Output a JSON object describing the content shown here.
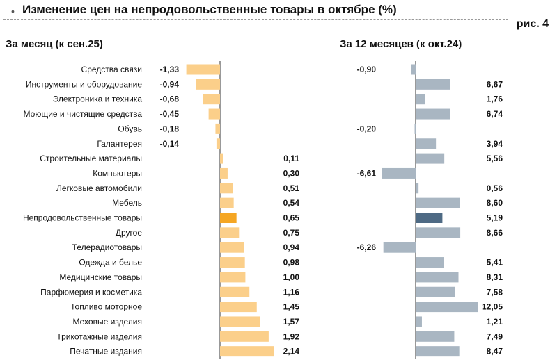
{
  "header": {
    "title": "Изменение цен на непродовольственные товары в октябре (%)",
    "figure_label": "рис. 4"
  },
  "colors": {
    "month_bar": "#fbcf8a",
    "month_highlight": "#f5a623",
    "year_bar": "#a9b6c2",
    "year_highlight": "#4e6a84",
    "axis": "#333333"
  },
  "chart_data": [
    {
      "type": "bar",
      "orientation": "horizontal",
      "title": "За месяц (к сен.25)",
      "highlight": "Непродовольственные товары",
      "categories": [
        "Средства связи",
        "Инструменты и оборудование",
        "Электроника и техника",
        "Моющие и чистящие средства",
        "Обувь",
        "Галантерея",
        "Строительные материалы",
        "Компьютеры",
        "Легковые автомобили",
        "Мебель",
        "Непродовольственные товары",
        "Другое",
        "Телерадиотовары",
        "Одежда и белье",
        "Медицинские товары",
        "Парфюмерия и косметика",
        "Топливо моторное",
        "Меховые изделия",
        "Трикотажные изделия",
        "Печатные издания"
      ],
      "values": [
        -1.33,
        -0.94,
        -0.68,
        -0.45,
        -0.18,
        -0.14,
        0.11,
        0.3,
        0.51,
        0.54,
        0.65,
        0.75,
        0.94,
        0.98,
        1.0,
        1.16,
        1.45,
        1.57,
        1.92,
        2.14
      ],
      "labels": [
        "-1,33",
        "-0,94",
        "-0,68",
        "-0,45",
        "-0,18",
        "-0,14",
        "0,11",
        "0,30",
        "0,51",
        "0,54",
        "0,65",
        "0,75",
        "0,94",
        "0,98",
        "1,00",
        "1,16",
        "1,45",
        "1,57",
        "1,92",
        "2,14"
      ]
    },
    {
      "type": "bar",
      "orientation": "horizontal",
      "title": "За 12 месяцев (к окт.24)",
      "highlight": "Непродовольственные товары",
      "categories": [
        "Средства связи",
        "Инструменты и оборудование",
        "Электроника и техника",
        "Моющие и чистящие средства",
        "Обувь",
        "Галантерея",
        "Строительные материалы",
        "Компьютеры",
        "Легковые автомобили",
        "Мебель",
        "Непродовольственные товары",
        "Другое",
        "Телерадиотовары",
        "Одежда и белье",
        "Медицинские товары",
        "Парфюмерия и косметика",
        "Топливо моторное",
        "Меховые изделия",
        "Трикотажные изделия",
        "Печатные издания"
      ],
      "values": [
        -0.9,
        6.67,
        1.76,
        6.74,
        -0.2,
        3.94,
        5.56,
        -6.61,
        0.56,
        8.6,
        5.19,
        8.66,
        -6.26,
        5.41,
        8.31,
        7.58,
        12.05,
        1.21,
        7.49,
        8.47
      ],
      "labels": [
        "-0,90",
        "6,67",
        "1,76",
        "6,74",
        "-0,20",
        "3,94",
        "5,56",
        "-6,61",
        "0,56",
        "8,60",
        "5,19",
        "8,66",
        "-6,26",
        "5,41",
        "8,31",
        "7,58",
        "12,05",
        "1,21",
        "7,49",
        "8,47"
      ]
    }
  ]
}
